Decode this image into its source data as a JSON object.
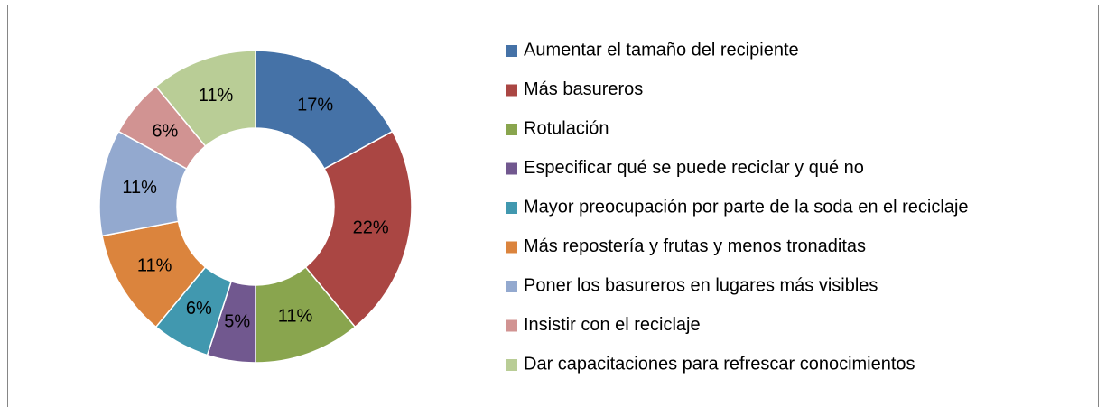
{
  "chart_data": {
    "type": "donut",
    "categories": [
      "Aumentar el tamaño del recipiente",
      "Más basureros",
      "Rotulación",
      "Especificar qué se puede reciclar y qué no",
      "Mayor preocupación por parte de la soda en el reciclaje",
      "Más repostería y frutas y menos tronaditas",
      "Poner los basureros en lugares más visibles",
      "Insistir con el reciclaje",
      "Dar capacitaciones para refrescar conocimientos"
    ],
    "values": [
      17,
      22,
      11,
      5,
      6,
      11,
      11,
      6,
      11
    ],
    "value_labels": [
      "17%",
      "22%",
      "11%",
      "5%",
      "6%",
      "11%",
      "11%",
      "6%",
      "11%"
    ],
    "colors": [
      "#4572A7",
      "#AA4643",
      "#89A54E",
      "#71588F",
      "#4198AF",
      "#DB843D",
      "#93A9CF",
      "#D19392",
      "#B9CD96"
    ],
    "legend": "right"
  }
}
